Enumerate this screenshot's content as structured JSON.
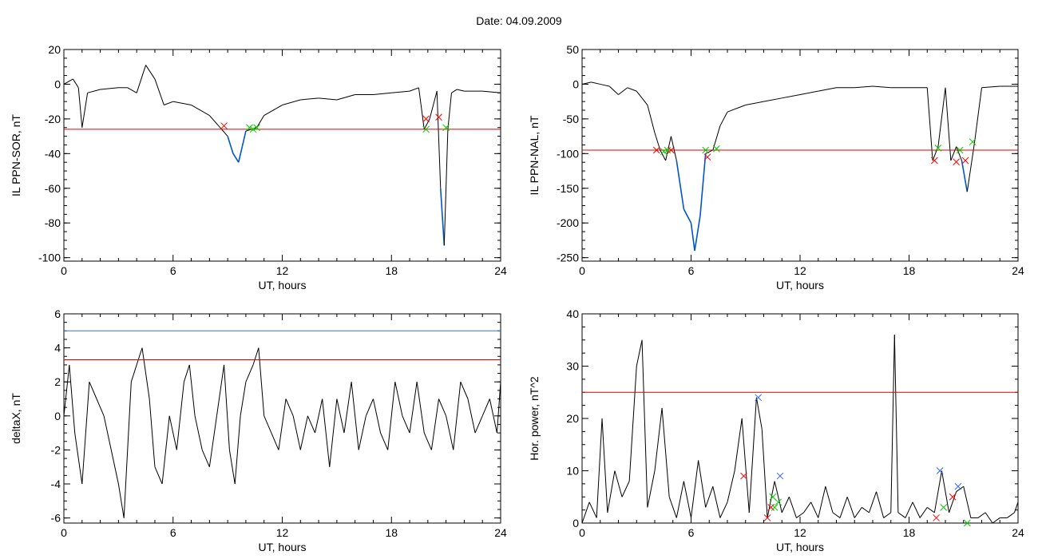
{
  "title": "Date:  04.09.2009",
  "chart_data": [
    {
      "type": "line",
      "xlabel": "UT, hours",
      "ylabel": "IL PPN-SOR, nT",
      "xlim": [
        0,
        24
      ],
      "ylim": [
        -102,
        20
      ],
      "xticks": [
        0,
        6,
        12,
        18,
        24
      ],
      "yticks": [
        20,
        0,
        -20,
        -40,
        -60,
        -80,
        -100
      ],
      "threshold": -26,
      "x": [
        0,
        0.5,
        0.8,
        1.0,
        1.3,
        2,
        3,
        3.5,
        4,
        4.5,
        5,
        5.5,
        6,
        7,
        8,
        8.5,
        9.0,
        9.3,
        9.6,
        9.8,
        10.0,
        10.3,
        10.6,
        11,
        12,
        13,
        14,
        15,
        16,
        17,
        18,
        19,
        19.5,
        19.8,
        20.1,
        20.5,
        20.7,
        20.9,
        21.1,
        21.3,
        21.6,
        22,
        23,
        24
      ],
      "series": [
        {
          "values": [
            0,
            3,
            -2,
            -25,
            -5,
            -3,
            -2,
            -2,
            -5,
            11,
            3,
            -12,
            -10,
            -12,
            -18,
            -24,
            -30,
            -40,
            -45,
            -36,
            -27,
            -26,
            -25,
            -18,
            -12,
            -9,
            -8,
            -9,
            -6,
            -6,
            -5,
            -4,
            -2,
            -26,
            -20,
            -4,
            -60,
            -93,
            -26,
            -5,
            -3,
            -4,
            -4,
            -5
          ]
        }
      ],
      "markers": [
        {
          "x": 8.8,
          "y": -24,
          "color": "#ff0000"
        },
        {
          "x": 10.2,
          "y": -25,
          "color": "#00cc00"
        },
        {
          "x": 10.4,
          "y": -26,
          "color": "#00cc00"
        },
        {
          "x": 10.6,
          "y": -25,
          "color": "#00cc00"
        },
        {
          "x": 19.9,
          "y": -20,
          "color": "#ff0000"
        },
        {
          "x": 19.9,
          "y": -26,
          "color": "#00cc00"
        },
        {
          "x": 20.6,
          "y": -19,
          "color": "#ff0000"
        },
        {
          "x": 21.0,
          "y": -25,
          "color": "#00cc00"
        }
      ]
    },
    {
      "type": "line",
      "xlabel": "UT, hours",
      "ylabel": "IL PPN-NAL, nT",
      "xlim": [
        0,
        24
      ],
      "ylim": [
        -255,
        50
      ],
      "xticks": [
        0,
        6,
        12,
        18,
        24
      ],
      "yticks": [
        50,
        0,
        -50,
        -100,
        -150,
        -200,
        -250
      ],
      "threshold": -95,
      "x": [
        0,
        0.5,
        1,
        1.5,
        2,
        2.5,
        3,
        3.3,
        3.6,
        4,
        4.3,
        4.6,
        4.9,
        5.2,
        5.6,
        6.0,
        6.2,
        6.5,
        6.8,
        7.2,
        7.6,
        8,
        9,
        10,
        11,
        12,
        13,
        14,
        15,
        16,
        17,
        18,
        19,
        19.3,
        19.6,
        20.0,
        20.3,
        20.6,
        20.9,
        21.2,
        21.6,
        22,
        23,
        24
      ],
      "series": [
        {
          "values": [
            0,
            3,
            0,
            -3,
            -15,
            -5,
            -10,
            -20,
            -30,
            -70,
            -95,
            -110,
            -75,
            -110,
            -180,
            -200,
            -240,
            -190,
            -100,
            -95,
            -60,
            -40,
            -30,
            -25,
            -20,
            -15,
            -10,
            -5,
            -5,
            -3,
            -5,
            -5,
            -5,
            -110,
            -90,
            -5,
            -110,
            -90,
            -110,
            -155,
            -85,
            -5,
            -3,
            -3
          ]
        }
      ],
      "markers": [
        {
          "x": 4.1,
          "y": -95,
          "color": "#ff0000"
        },
        {
          "x": 4.5,
          "y": -97,
          "color": "#00cc00"
        },
        {
          "x": 4.7,
          "y": -95,
          "color": "#00cc00"
        },
        {
          "x": 4.9,
          "y": -95,
          "color": "#ff0000"
        },
        {
          "x": 6.8,
          "y": -95,
          "color": "#00cc00"
        },
        {
          "x": 6.9,
          "y": -105,
          "color": "#ff0000"
        },
        {
          "x": 7.4,
          "y": -93,
          "color": "#00cc00"
        },
        {
          "x": 19.4,
          "y": -110,
          "color": "#ff0000"
        },
        {
          "x": 19.6,
          "y": -92,
          "color": "#00cc00"
        },
        {
          "x": 20.6,
          "y": -112,
          "color": "#ff0000"
        },
        {
          "x": 20.8,
          "y": -95,
          "color": "#00cc00"
        },
        {
          "x": 21.1,
          "y": -110,
          "color": "#ff0000"
        },
        {
          "x": 21.5,
          "y": -83,
          "color": "#00cc00"
        }
      ]
    },
    {
      "type": "line",
      "xlabel": "UT, hours",
      "ylabel": "deltaX, nT",
      "xlim": [
        0,
        24
      ],
      "ylim": [
        -6.3,
        6
      ],
      "xticks": [
        0,
        6,
        12,
        18,
        24
      ],
      "yticks": [
        6,
        4,
        2,
        0,
        -2,
        -4,
        -6
      ],
      "threshold": 3.3,
      "threshold2": 5.0,
      "x": [
        0,
        0.3,
        0.6,
        1.0,
        1.4,
        1.8,
        2.2,
        2.6,
        3.0,
        3.3,
        3.7,
        4.0,
        4.3,
        4.7,
        5.0,
        5.4,
        5.8,
        6.2,
        6.6,
        6.9,
        7.2,
        7.6,
        8.0,
        8.4,
        8.8,
        9.1,
        9.4,
        9.7,
        10.0,
        10.4,
        10.7,
        11.0,
        11.4,
        11.8,
        12.2,
        12.6,
        13.0,
        13.4,
        13.8,
        14.2,
        14.6,
        15.0,
        15.4,
        15.8,
        16.2,
        16.6,
        17.0,
        17.4,
        17.8,
        18.2,
        18.6,
        19.0,
        19.4,
        19.8,
        20.2,
        20.6,
        21.0,
        21.4,
        21.8,
        22.2,
        22.6,
        23.0,
        23.4,
        23.8,
        24
      ],
      "series": [
        {
          "values": [
            0,
            3,
            -1,
            -4,
            2,
            1,
            0,
            -2,
            -4,
            -6,
            2,
            3,
            4,
            1,
            -3,
            -4,
            0,
            -2,
            2,
            3,
            0,
            -2,
            -3,
            0,
            3,
            -2,
            -4,
            0,
            2,
            3,
            4,
            0,
            -1,
            -2,
            1,
            0,
            -2,
            0,
            -1,
            1,
            -3,
            1,
            -1,
            2,
            -2,
            0,
            1,
            -1,
            -2,
            2,
            0,
            -1,
            2,
            -1,
            -2,
            1,
            0,
            -2,
            2,
            1,
            -1,
            0,
            1,
            -1,
            2
          ]
        }
      ],
      "markers": []
    },
    {
      "type": "line",
      "xlabel": "UT, hours",
      "ylabel": "Hor. power, nT^2",
      "xlim": [
        0,
        24
      ],
      "ylim": [
        0,
        40
      ],
      "xticks": [
        0,
        6,
        12,
        18,
        24
      ],
      "yticks": [
        40,
        30,
        20,
        10,
        0
      ],
      "threshold": 25,
      "x": [
        0,
        0.4,
        0.8,
        1.1,
        1.4,
        1.8,
        2.2,
        2.6,
        3.0,
        3.3,
        3.6,
        4.0,
        4.4,
        4.8,
        5.2,
        5.6,
        6.0,
        6.4,
        6.8,
        7.2,
        7.6,
        8.0,
        8.4,
        8.8,
        9.2,
        9.6,
        9.9,
        10.2,
        10.6,
        11.0,
        11.4,
        11.8,
        12.2,
        12.6,
        13.0,
        13.4,
        13.8,
        14.2,
        14.6,
        15.0,
        15.4,
        15.8,
        16.2,
        16.6,
        17.0,
        17.2,
        17.4,
        17.8,
        18.2,
        18.6,
        19.0,
        19.4,
        19.8,
        20.2,
        20.6,
        21.0,
        21.4,
        21.8,
        22.2,
        22.6,
        23.0,
        23.4,
        23.8,
        24
      ],
      "series": [
        {
          "values": [
            0,
            4,
            1,
            20,
            2,
            10,
            5,
            8,
            30,
            35,
            3,
            10,
            22,
            5,
            1,
            8,
            1,
            12,
            3,
            7,
            1,
            4,
            10,
            20,
            2,
            24,
            18,
            1,
            8,
            2,
            5,
            1,
            2,
            4,
            1,
            7,
            2,
            1,
            5,
            1,
            3,
            2,
            6,
            1,
            2,
            36,
            2,
            1,
            4,
            1,
            3,
            2,
            10,
            2,
            6,
            7,
            1,
            1,
            2,
            0,
            1,
            1,
            2,
            4
          ]
        }
      ],
      "markers": [
        {
          "x": 8.9,
          "y": 9,
          "color": "#ff0000"
        },
        {
          "x": 9.7,
          "y": 24,
          "color": "#3366ff"
        },
        {
          "x": 10.2,
          "y": 1,
          "color": "#ff0000"
        },
        {
          "x": 10.4,
          "y": 3,
          "color": "#ff0000"
        },
        {
          "x": 10.5,
          "y": 5,
          "color": "#00cc00"
        },
        {
          "x": 10.6,
          "y": 3,
          "color": "#00cc00"
        },
        {
          "x": 10.8,
          "y": 4,
          "color": "#00cc00"
        },
        {
          "x": 10.9,
          "y": 9,
          "color": "#3366ff"
        },
        {
          "x": 19.5,
          "y": 1,
          "color": "#ff0000"
        },
        {
          "x": 19.7,
          "y": 10,
          "color": "#3366ff"
        },
        {
          "x": 19.9,
          "y": 3,
          "color": "#00cc00"
        },
        {
          "x": 20.4,
          "y": 5,
          "color": "#ff0000"
        },
        {
          "x": 20.7,
          "y": 7,
          "color": "#3366ff"
        },
        {
          "x": 21.2,
          "y": 0,
          "color": "#00cc00"
        }
      ]
    }
  ],
  "colors": {
    "axis": "#000000",
    "line": "#000000",
    "highlight": "#0055cc",
    "threshold": "#dd0000",
    "threshold2": "#3377cc"
  }
}
